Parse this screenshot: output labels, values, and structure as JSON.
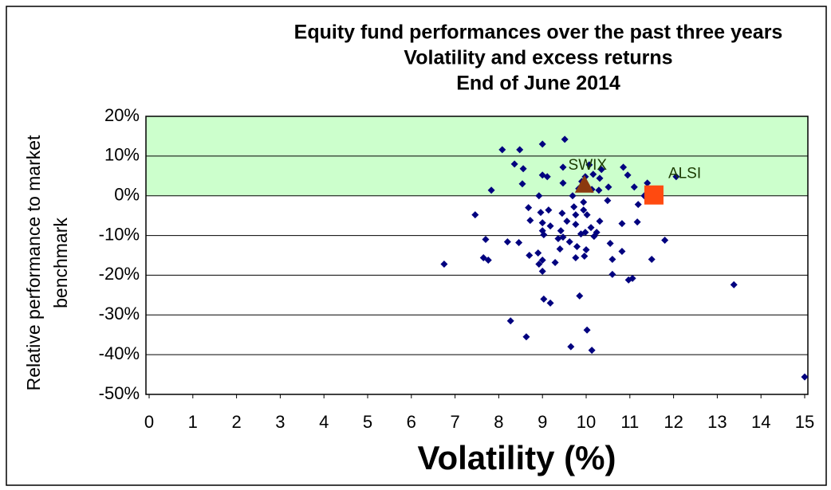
{
  "chart_data": {
    "type": "scatter",
    "title": [
      "Equity fund performances over the past three years",
      "Volatility and excess returns",
      "End of June 2014"
    ],
    "x_label": "Volatility (%)",
    "y_label": [
      "Relative performance to market",
      "benchmark"
    ],
    "x": [
      6.75,
      7.46,
      7.7,
      7.65,
      7.76,
      8.08,
      7.83,
      8.2,
      8.27,
      8.48,
      8.36,
      8.56,
      8.54,
      8.63,
      8.72,
      8.68,
      8.7,
      8.46,
      9.0,
      9.0,
      9.11,
      8.92,
      8.96,
      9.0,
      9.0,
      9.03,
      8.9,
      8.92,
      9.0,
      9.0,
      9.03,
      9.18,
      9.14,
      9.18,
      9.29,
      9.36,
      9.42,
      9.47,
      9.47,
      9.45,
      9.4,
      9.56,
      9.47,
      9.51,
      9.62,
      9.65,
      9.69,
      9.72,
      9.76,
      9.76,
      9.76,
      9.83,
      9.85,
      9.79,
      9.88,
      9.9,
      9.94,
      9.94,
      9.96,
      9.98,
      9.98,
      10.0,
      10.02,
      10.02,
      10.07,
      10.13,
      10.11,
      10.13,
      10.16,
      10.18,
      10.24,
      10.29,
      10.31,
      10.35,
      10.31,
      10.49,
      10.51,
      10.55,
      10.6,
      10.6,
      10.82,
      10.82,
      10.85,
      10.95,
      10.97,
      11.06,
      11.1,
      11.17,
      11.19,
      11.33,
      11.4,
      11.5,
      11.8,
      12.06,
      13.38,
      15.0
    ],
    "values": [
      -17.2,
      -4.8,
      -11,
      -15.6,
      -16.2,
      11.6,
      1.4,
      -11.6,
      -31.5,
      11.6,
      8,
      6.8,
      3,
      -35.5,
      -6.2,
      -3,
      -15,
      -11.8,
      13,
      5.2,
      4.8,
      0,
      -4.2,
      -6.8,
      -8.8,
      -9.8,
      -14.4,
      -17.2,
      -16.2,
      -19,
      -26,
      -27,
      -3.6,
      -7.6,
      -16.8,
      -10.8,
      -8.8,
      7.2,
      3.2,
      -4.4,
      -13.4,
      -6.4,
      -10.4,
      14.2,
      -11.6,
      -38,
      0,
      -2.8,
      -4.8,
      -7.2,
      -15.6,
      1.8,
      -25.2,
      -12.8,
      -9.6,
      3.6,
      -1.6,
      -3.6,
      -15.2,
      4.8,
      -9.2,
      -13.6,
      -4.8,
      -33.8,
      7.8,
      1.6,
      -8,
      -38.9,
      5.4,
      -10.2,
      -9.2,
      1.4,
      4.4,
      6.6,
      -6.4,
      -1.2,
      2.2,
      -12,
      -16,
      -19.8,
      -7,
      -14,
      7.2,
      5.2,
      -21.2,
      -20.8,
      2.2,
      -6.6,
      -2.2,
      0,
      3.2,
      -16,
      -11.2,
      4.8,
      -22.4,
      -45.6
    ],
    "color": "#00007f",
    "highlights": [
      {
        "name": "SWIX",
        "x": 9.96,
        "value": 2.8,
        "color": "#8b3a0f",
        "marker": "triangle"
      },
      {
        "name": "ALSI",
        "x": 11.55,
        "value": 0.2,
        "color": "#ff4a10",
        "marker": "square"
      }
    ],
    "shaded_band": [
      0,
      20
    ],
    "band_color": "#ccffcc",
    "xlim": [
      0,
      15
    ],
    "xticks": [
      0,
      1,
      2,
      3,
      4,
      5,
      6,
      7,
      8,
      9,
      10,
      11,
      12,
      13,
      14,
      15
    ],
    "ylim": [
      -50,
      20
    ],
    "yticks": [
      {
        "value": -50,
        "label": "-50%"
      },
      {
        "value": -40,
        "label": "-40%"
      },
      {
        "value": -30,
        "label": "-30%"
      },
      {
        "value": -20,
        "label": "-20%"
      },
      {
        "value": -10,
        "label": "-10%"
      },
      {
        "value": 0,
        "label": "0%"
      },
      {
        "value": 10,
        "label": "10%"
      },
      {
        "value": 20,
        "label": "20%"
      }
    ],
    "grid": true
  }
}
